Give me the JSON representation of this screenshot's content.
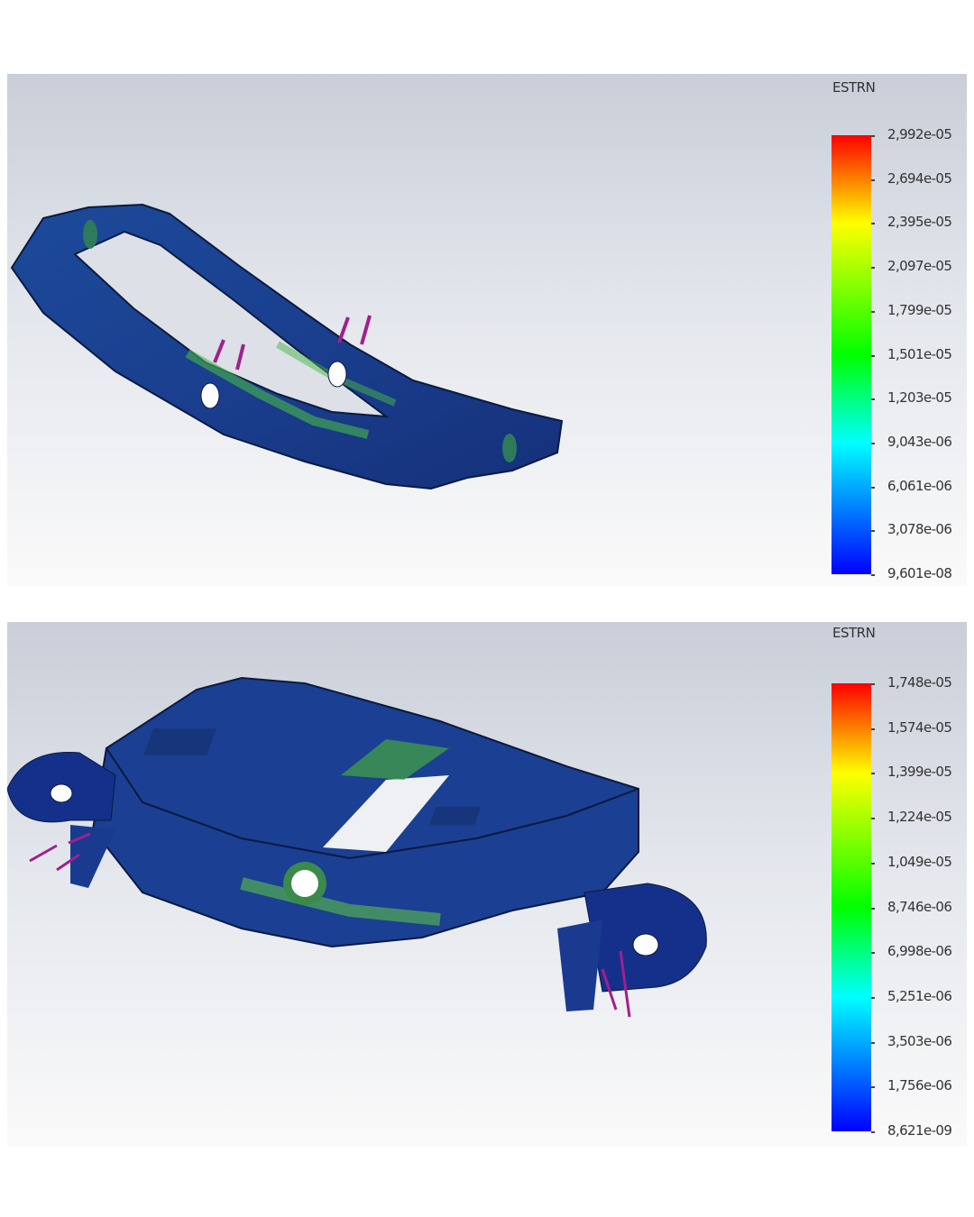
{
  "plots": [
    {
      "title": "ESTRN",
      "colormap": "rainbow red-to-blue",
      "labels": [
        "2,992e-05",
        "2,694e-05",
        "2,395e-05",
        "2,097e-05",
        "1,799e-05",
        "1,501e-05",
        "1,203e-05",
        "9,043e-06",
        "6,061e-06",
        "3,078e-06",
        "9,601e-08"
      ]
    },
    {
      "title": "ESTRN",
      "colormap": "rainbow red-to-blue",
      "labels": [
        "1,748e-05",
        "1,574e-05",
        "1,399e-05",
        "1,224e-05",
        "1,049e-05",
        "8,746e-06",
        "6,998e-06",
        "5,251e-06",
        "3,503e-06",
        "1,756e-06",
        "8,621e-09"
      ]
    }
  ],
  "colors": {
    "part": "#1a3a8c",
    "highlight": "#3fbf3f",
    "load_arrows": "#a0208f"
  }
}
